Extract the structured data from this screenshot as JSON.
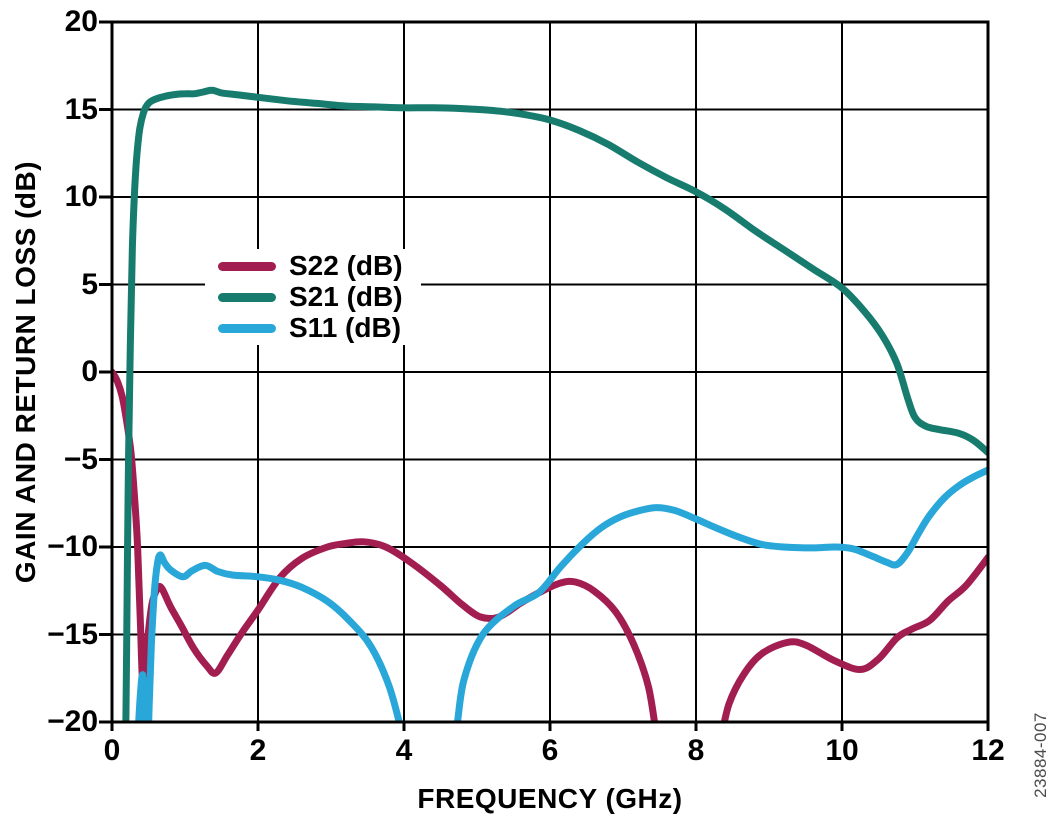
{
  "figure_code": "23884-007",
  "chart_data": {
    "type": "line",
    "title": "",
    "xlabel": "FREQUENCY (GHz)",
    "ylabel": "GAIN AND RETURN LOSS (dB)",
    "xlim": [
      0,
      12
    ],
    "ylim": [
      -20,
      20
    ],
    "x_ticks": [
      0,
      2,
      4,
      6,
      8,
      10,
      12
    ],
    "y_ticks": [
      20,
      15,
      10,
      5,
      0,
      -5,
      -10,
      -15,
      -20
    ],
    "grid": true,
    "legend_position": "inside-upper-left",
    "axis_color": "#000000",
    "series": [
      {
        "name": "S22 (dB)",
        "color": "#a21e51",
        "points": [
          [
            0,
            0
          ],
          [
            0.07,
            -0.5
          ],
          [
            0.14,
            -1.4
          ],
          [
            0.2,
            -2.8
          ],
          [
            0.26,
            -4.6
          ],
          [
            0.31,
            -7.2
          ],
          [
            0.35,
            -10
          ],
          [
            0.39,
            -14.5
          ],
          [
            0.42,
            -17.7
          ],
          [
            0.46,
            -16.6
          ],
          [
            0.5,
            -14.8
          ],
          [
            0.55,
            -13.2
          ],
          [
            0.62,
            -12.4
          ],
          [
            0.68,
            -12.35
          ],
          [
            0.8,
            -13.4
          ],
          [
            0.95,
            -14.5
          ],
          [
            1.12,
            -15.8
          ],
          [
            1.3,
            -16.8
          ],
          [
            1.42,
            -17.2
          ],
          [
            1.58,
            -16.2
          ],
          [
            1.78,
            -14.9
          ],
          [
            2,
            -13.6
          ],
          [
            2.3,
            -11.75
          ],
          [
            2.6,
            -10.65
          ],
          [
            2.95,
            -10
          ],
          [
            3.2,
            -9.8
          ],
          [
            3.45,
            -9.7
          ],
          [
            3.75,
            -10
          ],
          [
            4.1,
            -10.9
          ],
          [
            4.5,
            -12.2
          ],
          [
            4.8,
            -13.3
          ],
          [
            5.05,
            -14
          ],
          [
            5.3,
            -14
          ],
          [
            5.6,
            -13.2
          ],
          [
            5.9,
            -12.5
          ],
          [
            6.15,
            -12.05
          ],
          [
            6.35,
            -12
          ],
          [
            6.6,
            -12.5
          ],
          [
            6.9,
            -13.7
          ],
          [
            7.15,
            -15.6
          ],
          [
            7.35,
            -18
          ],
          [
            7.5,
            -21.5
          ],
          [
            7.7,
            -23
          ],
          [
            8.1,
            -23
          ],
          [
            8.3,
            -21.5
          ],
          [
            8.45,
            -19
          ],
          [
            8.65,
            -17.3
          ],
          [
            8.9,
            -16.1
          ],
          [
            9.25,
            -15.45
          ],
          [
            9.5,
            -15.6
          ],
          [
            9.9,
            -16.5
          ],
          [
            10.25,
            -17
          ],
          [
            10.5,
            -16.4
          ],
          [
            10.75,
            -15.2
          ],
          [
            10.95,
            -14.7
          ],
          [
            11.2,
            -14.2
          ],
          [
            11.45,
            -13.1
          ],
          [
            11.7,
            -12.2
          ],
          [
            12,
            -10.6
          ]
        ]
      },
      {
        "name": "S21 (dB)",
        "color": "#177c6e",
        "points": [
          [
            0.18,
            -24
          ],
          [
            0.2,
            -16
          ],
          [
            0.22,
            -7
          ],
          [
            0.25,
            1.5
          ],
          [
            0.28,
            7.2
          ],
          [
            0.32,
            11.2
          ],
          [
            0.37,
            13.6
          ],
          [
            0.43,
            14.8
          ],
          [
            0.5,
            15.35
          ],
          [
            0.6,
            15.6
          ],
          [
            0.72,
            15.75
          ],
          [
            0.85,
            15.85
          ],
          [
            1,
            15.9
          ],
          [
            1.12,
            15.9
          ],
          [
            1.25,
            16
          ],
          [
            1.37,
            16.1
          ],
          [
            1.5,
            15.95
          ],
          [
            1.7,
            15.85
          ],
          [
            2,
            15.7
          ],
          [
            2.4,
            15.5
          ],
          [
            2.8,
            15.35
          ],
          [
            3.2,
            15.2
          ],
          [
            3.6,
            15.15
          ],
          [
            4,
            15.1
          ],
          [
            4.4,
            15.1
          ],
          [
            4.8,
            15.05
          ],
          [
            5.2,
            14.95
          ],
          [
            5.6,
            14.75
          ],
          [
            6,
            14.4
          ],
          [
            6.4,
            13.8
          ],
          [
            6.8,
            13
          ],
          [
            7.2,
            12
          ],
          [
            7.6,
            11.1
          ],
          [
            8,
            10.3
          ],
          [
            8.4,
            9.3
          ],
          [
            8.8,
            8.1
          ],
          [
            9.2,
            7
          ],
          [
            9.6,
            5.9
          ],
          [
            10,
            4.8
          ],
          [
            10.3,
            3.5
          ],
          [
            10.55,
            2.1
          ],
          [
            10.75,
            0.5
          ],
          [
            10.9,
            -1.5
          ],
          [
            11,
            -2.6
          ],
          [
            11.15,
            -3.1
          ],
          [
            11.35,
            -3.3
          ],
          [
            11.6,
            -3.5
          ],
          [
            11.8,
            -3.9
          ],
          [
            12,
            -4.6
          ]
        ]
      },
      {
        "name": "S11 (dB)",
        "color": "#2aa7d9",
        "points": [
          [
            0.33,
            -23
          ],
          [
            0.38,
            -19
          ],
          [
            0.42,
            -17.3
          ],
          [
            0.45,
            -19.5
          ],
          [
            0.48,
            -22.5
          ],
          [
            0.51,
            -19
          ],
          [
            0.54,
            -15.5
          ],
          [
            0.58,
            -12.6
          ],
          [
            0.62,
            -11
          ],
          [
            0.66,
            -10.45
          ],
          [
            0.72,
            -10.9
          ],
          [
            0.8,
            -11.3
          ],
          [
            0.97,
            -11.7
          ],
          [
            1.1,
            -11.35
          ],
          [
            1.28,
            -11.05
          ],
          [
            1.45,
            -11.4
          ],
          [
            1.65,
            -11.6
          ],
          [
            2,
            -11.7
          ],
          [
            2.3,
            -11.9
          ],
          [
            2.6,
            -12.3
          ],
          [
            2.95,
            -13.1
          ],
          [
            3.25,
            -14.2
          ],
          [
            3.55,
            -15.7
          ],
          [
            3.8,
            -18
          ],
          [
            4,
            -21
          ],
          [
            4.2,
            -23.5
          ],
          [
            4.5,
            -23.5
          ],
          [
            4.7,
            -20.8
          ],
          [
            4.82,
            -17.6
          ],
          [
            5.08,
            -15
          ],
          [
            5.5,
            -13.4
          ],
          [
            5.85,
            -12.6
          ],
          [
            6.15,
            -11.1
          ],
          [
            6.45,
            -9.8
          ],
          [
            6.7,
            -8.9
          ],
          [
            6.95,
            -8.3
          ],
          [
            7.2,
            -7.95
          ],
          [
            7.45,
            -7.75
          ],
          [
            7.7,
            -7.9
          ],
          [
            8,
            -8.4
          ],
          [
            8.3,
            -8.95
          ],
          [
            8.6,
            -9.45
          ],
          [
            8.9,
            -9.85
          ],
          [
            9.2,
            -10
          ],
          [
            9.6,
            -10.05
          ],
          [
            9.9,
            -10
          ],
          [
            10.15,
            -10.1
          ],
          [
            10.4,
            -10.5
          ],
          [
            10.6,
            -10.85
          ],
          [
            10.75,
            -11
          ],
          [
            10.9,
            -10.3
          ],
          [
            11.05,
            -9.2
          ],
          [
            11.2,
            -8.2
          ],
          [
            11.4,
            -7.2
          ],
          [
            11.6,
            -6.5
          ],
          [
            11.8,
            -6
          ],
          [
            12,
            -5.6
          ]
        ]
      }
    ]
  }
}
